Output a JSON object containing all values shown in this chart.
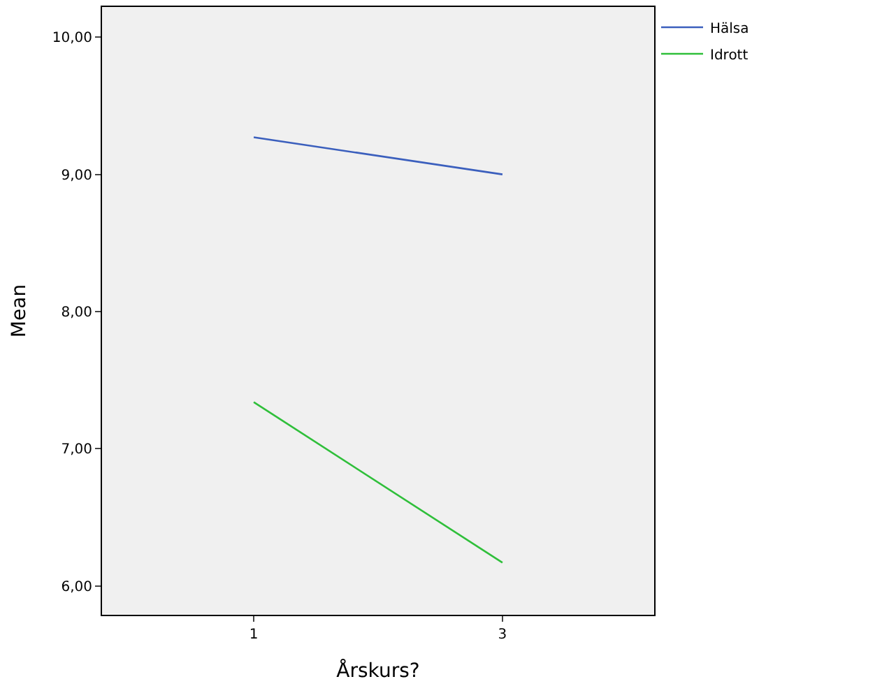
{
  "chart_data": {
    "type": "line",
    "xlabel": "Årskurs?",
    "ylabel": "Mean",
    "categories": [
      "1",
      "3"
    ],
    "series": [
      {
        "name": "Hälsa",
        "color": "#3b5fbd",
        "values": [
          9.27,
          9.0
        ]
      },
      {
        "name": "Idrott",
        "color": "#2fbf3a",
        "values": [
          7.34,
          6.17
        ]
      }
    ],
    "ylim": [
      5.79,
      10.22
    ],
    "yticks": [
      {
        "value": 6,
        "label": "6,00"
      },
      {
        "value": 7,
        "label": "7,00"
      },
      {
        "value": 8,
        "label": "8,00"
      },
      {
        "value": 9,
        "label": "9,00"
      },
      {
        "value": 10,
        "label": "10,00"
      }
    ],
    "grid": false,
    "legend": "top right",
    "marker": "none",
    "line_style": "solid"
  }
}
